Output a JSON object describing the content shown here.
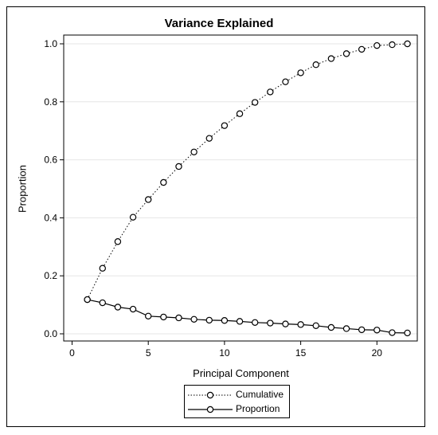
{
  "chart_data": {
    "type": "line",
    "title": "Variance Explained",
    "xlabel": "Principal Component",
    "ylabel": "Proportion",
    "xlim": [
      0,
      22
    ],
    "ylim": [
      0,
      1.0
    ],
    "xticks": [
      0,
      5,
      10,
      15,
      20
    ],
    "yticks": [
      0.0,
      0.2,
      0.4,
      0.6,
      0.8,
      1.0
    ],
    "ytick_labels": [
      "0.0",
      "0.2",
      "0.4",
      "0.6",
      "0.8",
      "1.0"
    ],
    "grid": "horizontal",
    "legend_position": "bottom",
    "x": [
      1,
      2,
      3,
      4,
      5,
      6,
      7,
      8,
      9,
      10,
      11,
      12,
      13,
      14,
      15,
      16,
      17,
      18,
      19,
      20,
      21,
      22
    ],
    "series": [
      {
        "name": "Cumulative",
        "line_style": "dotted",
        "marker": "circle",
        "values": [
          0.118,
          0.226,
          0.318,
          0.402,
          0.463,
          0.522,
          0.577,
          0.627,
          0.674,
          0.718,
          0.759,
          0.798,
          0.834,
          0.869,
          0.9,
          0.928,
          0.949,
          0.966,
          0.981,
          0.994,
          0.997,
          1.0
        ]
      },
      {
        "name": "Proportion",
        "line_style": "solid",
        "marker": "circle",
        "values": [
          0.118,
          0.107,
          0.092,
          0.085,
          0.061,
          0.058,
          0.055,
          0.05,
          0.047,
          0.046,
          0.043,
          0.039,
          0.037,
          0.034,
          0.032,
          0.028,
          0.022,
          0.018,
          0.014,
          0.013,
          0.004,
          0.003
        ]
      }
    ],
    "colors": {
      "line": "#000000",
      "grid": "#e6e6e6",
      "axis": "#000000"
    }
  }
}
